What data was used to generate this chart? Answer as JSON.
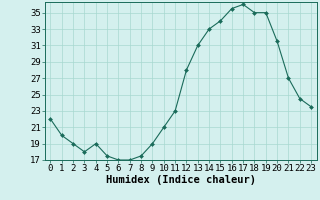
{
  "x": [
    0,
    1,
    2,
    3,
    4,
    5,
    6,
    7,
    8,
    9,
    10,
    11,
    12,
    13,
    14,
    15,
    16,
    17,
    18,
    19,
    20,
    21,
    22,
    23
  ],
  "y": [
    22,
    20,
    19,
    18,
    19,
    17.5,
    17,
    17,
    17.5,
    19,
    21,
    23,
    28,
    31,
    33,
    34,
    35.5,
    36,
    35,
    35,
    31.5,
    27,
    24.5,
    23.5
  ],
  "xlabel": "Humidex (Indice chaleur)",
  "ylabel": "",
  "ylim": [
    17,
    36
  ],
  "xlim": [
    -0.5,
    23.5
  ],
  "yticks": [
    17,
    19,
    21,
    23,
    25,
    27,
    29,
    31,
    33,
    35
  ],
  "xticks": [
    0,
    1,
    2,
    3,
    4,
    5,
    6,
    7,
    8,
    9,
    10,
    11,
    12,
    13,
    14,
    15,
    16,
    17,
    18,
    19,
    20,
    21,
    22,
    23
  ],
  "line_color": "#1a6b5a",
  "marker_color": "#1a6b5a",
  "bg_color": "#d4f0ee",
  "grid_color": "#a8d8d0",
  "label_fontsize": 7.5,
  "tick_fontsize": 6.5
}
